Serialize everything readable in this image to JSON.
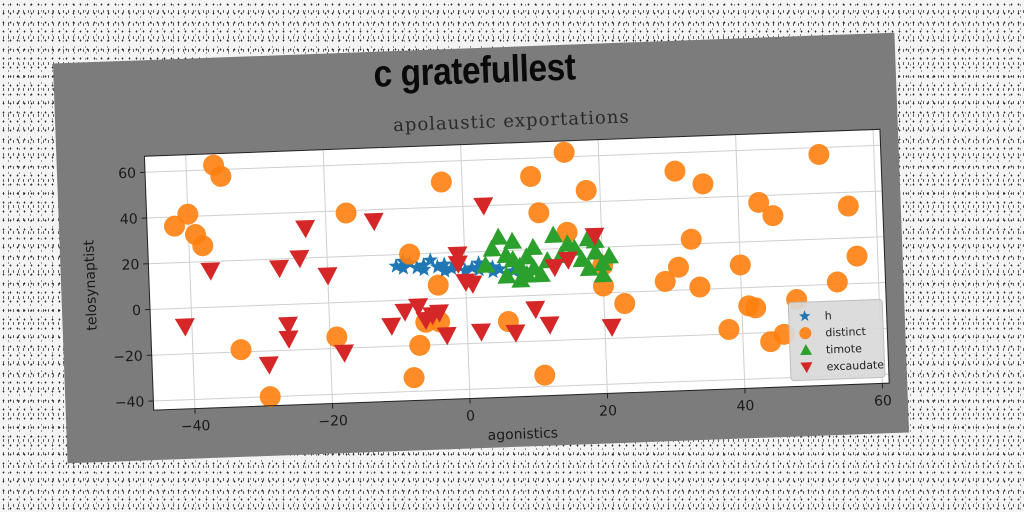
{
  "figure": {
    "headline": "c gratefullest"
  },
  "chart_data": {
    "type": "scatter",
    "title": "apolaustic exportations",
    "xlabel": "agonistics",
    "ylabel": "telosynaptist",
    "xlim": [
      -46,
      61
    ],
    "ylim": [
      -44,
      67
    ],
    "xticks": [
      -40,
      -20,
      0,
      20,
      40,
      60
    ],
    "yticks": [
      -40,
      -20,
      0,
      20,
      40,
      60
    ],
    "grid": true,
    "legend": "lower-right",
    "series": [
      {
        "name": "h",
        "marker": "star",
        "color": "#1f77b4",
        "points": [
          [
            -10,
            15
          ],
          [
            -9,
            17
          ],
          [
            -8,
            16
          ],
          [
            -7,
            14
          ],
          [
            -6,
            15
          ],
          [
            -5,
            17
          ],
          [
            -4,
            14
          ],
          [
            -3,
            15
          ],
          [
            -2,
            13
          ],
          [
            -1,
            14
          ],
          [
            0,
            12
          ],
          [
            1,
            13
          ],
          [
            2,
            12
          ],
          [
            3,
            14
          ],
          [
            4,
            11
          ],
          [
            5,
            12
          ],
          [
            6,
            10
          ],
          [
            7,
            11
          ],
          [
            8,
            9
          ],
          [
            9,
            10
          ],
          [
            10,
            11
          ],
          [
            -9,
            14
          ],
          [
            -6,
            13
          ],
          [
            -3,
            12
          ],
          [
            2,
            15
          ],
          [
            4,
            13
          ]
        ]
      },
      {
        "name": "distinct",
        "marker": "circle",
        "color": "#ff7f0e",
        "points": [
          [
            -36,
            62
          ],
          [
            -35,
            57
          ],
          [
            -40,
            41
          ],
          [
            -42,
            36
          ],
          [
            -39,
            32
          ],
          [
            -38,
            27
          ],
          [
            -33,
            -19
          ],
          [
            -29,
            -40
          ],
          [
            -17,
            39
          ],
          [
            -19,
            -15
          ],
          [
            -8,
            -34
          ],
          [
            -7,
            -20
          ],
          [
            -6,
            -10
          ],
          [
            -4,
            -10
          ],
          [
            -3,
            51
          ],
          [
            -4,
            6
          ],
          [
            -8,
            20
          ],
          [
            6,
            -11
          ],
          [
            10,
            52
          ],
          [
            11,
            36
          ],
          [
            15,
            62
          ],
          [
            15,
            27
          ],
          [
            18,
            45
          ],
          [
            20,
            12
          ],
          [
            20,
            3
          ],
          [
            23,
            -5
          ],
          [
            11,
            -35
          ],
          [
            29,
            4
          ],
          [
            31,
            52
          ],
          [
            31,
            10
          ],
          [
            33,
            22
          ],
          [
            34,
            1
          ],
          [
            35,
            46
          ],
          [
            38,
            -18
          ],
          [
            41,
            -8
          ],
          [
            42,
            -9
          ],
          [
            40,
            10
          ],
          [
            43,
            37
          ],
          [
            45,
            31
          ],
          [
            44,
            -24
          ],
          [
            46,
            -21
          ],
          [
            48,
            -6
          ],
          [
            52,
            57
          ],
          [
            54,
            1
          ],
          [
            56,
            34
          ],
          [
            57,
            12
          ]
        ]
      },
      {
        "name": "timote",
        "marker": "triangle",
        "color": "#2ca02c",
        "points": [
          [
            3,
            14
          ],
          [
            4,
            21
          ],
          [
            5,
            26
          ],
          [
            6,
            18
          ],
          [
            6,
            9
          ],
          [
            7,
            24
          ],
          [
            8,
            13
          ],
          [
            8,
            7
          ],
          [
            9,
            17
          ],
          [
            10,
            21
          ],
          [
            10,
            12
          ],
          [
            11,
            9
          ],
          [
            12,
            15
          ],
          [
            13,
            26
          ],
          [
            14,
            17
          ],
          [
            15,
            22
          ],
          [
            16,
            20
          ],
          [
            17,
            15
          ],
          [
            18,
            24
          ],
          [
            18,
            11
          ],
          [
            19,
            18
          ],
          [
            20,
            13
          ],
          [
            20,
            8
          ],
          [
            21,
            16
          ],
          [
            19,
            23
          ],
          [
            7,
            16
          ],
          [
            9,
            9
          ]
        ]
      },
      {
        "name": "excaudate",
        "marker": "triangle-down",
        "color": "#d62728",
        "points": [
          [
            -41,
            -8
          ],
          [
            -37,
            16
          ],
          [
            -29,
            -26
          ],
          [
            -27,
            16
          ],
          [
            -26,
            -9
          ],
          [
            -26,
            -15
          ],
          [
            -24,
            20
          ],
          [
            -23,
            33
          ],
          [
            -20,
            12
          ],
          [
            -18,
            -22
          ],
          [
            -13,
            35
          ],
          [
            -11,
            -11
          ],
          [
            -9,
            -5
          ],
          [
            -7,
            -3
          ],
          [
            -6,
            -9
          ],
          [
            -5,
            -7
          ],
          [
            -4,
            -6
          ],
          [
            -3,
            -16
          ],
          [
            -1,
            19
          ],
          [
            -1,
            15
          ],
          [
            0,
            7
          ],
          [
            1,
            6
          ],
          [
            2,
            -15
          ],
          [
            3,
            40
          ],
          [
            7,
            -16
          ],
          [
            10,
            -6
          ],
          [
            12,
            -13
          ],
          [
            13,
            12
          ],
          [
            15,
            15
          ],
          [
            19,
            25
          ],
          [
            21,
            -15
          ]
        ]
      }
    ]
  }
}
